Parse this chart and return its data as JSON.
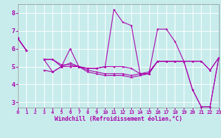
{
  "xlabel": "Windchill (Refroidissement éolien,°C)",
  "background_color": "#c8ecec",
  "grid_color": "#aadddd",
  "line_color": "#aa00aa",
  "xlim": [
    0,
    23
  ],
  "ylim": [
    2.7,
    8.5
  ],
  "xticks": [
    0,
    1,
    2,
    3,
    4,
    5,
    6,
    7,
    8,
    9,
    10,
    11,
    12,
    13,
    14,
    15,
    16,
    17,
    18,
    19,
    20,
    21,
    22,
    23
  ],
  "yticks": [
    3,
    4,
    5,
    6,
    7,
    8
  ],
  "series": [
    [
      6.6,
      5.9,
      null,
      4.8,
      4.7,
      5.0,
      6.0,
      5.0,
      4.9,
      4.9,
      5.0,
      8.2,
      7.5,
      7.3,
      4.6,
      4.6,
      7.1,
      7.1,
      6.4,
      5.3,
      3.7,
      2.75,
      2.75,
      5.5
    ],
    [
      6.6,
      5.9,
      null,
      5.4,
      5.4,
      5.0,
      5.0,
      5.0,
      4.7,
      4.6,
      4.5,
      4.5,
      4.5,
      4.4,
      4.5,
      4.6,
      5.3,
      5.3,
      5.3,
      5.3,
      5.3,
      5.3,
      4.8,
      5.5
    ],
    [
      6.6,
      5.9,
      null,
      5.4,
      5.4,
      5.1,
      5.1,
      5.0,
      4.8,
      4.7,
      4.6,
      4.6,
      4.6,
      4.5,
      4.6,
      4.7,
      5.3,
      5.3,
      5.3,
      5.3,
      5.3,
      5.3,
      4.8,
      5.5
    ],
    [
      6.6,
      5.9,
      null,
      5.4,
      4.7,
      5.0,
      5.2,
      5.0,
      4.9,
      4.9,
      5.0,
      5.0,
      5.0,
      4.9,
      4.6,
      4.6,
      5.3,
      5.3,
      5.3,
      5.3,
      3.7,
      2.75,
      2.75,
      5.5
    ]
  ]
}
